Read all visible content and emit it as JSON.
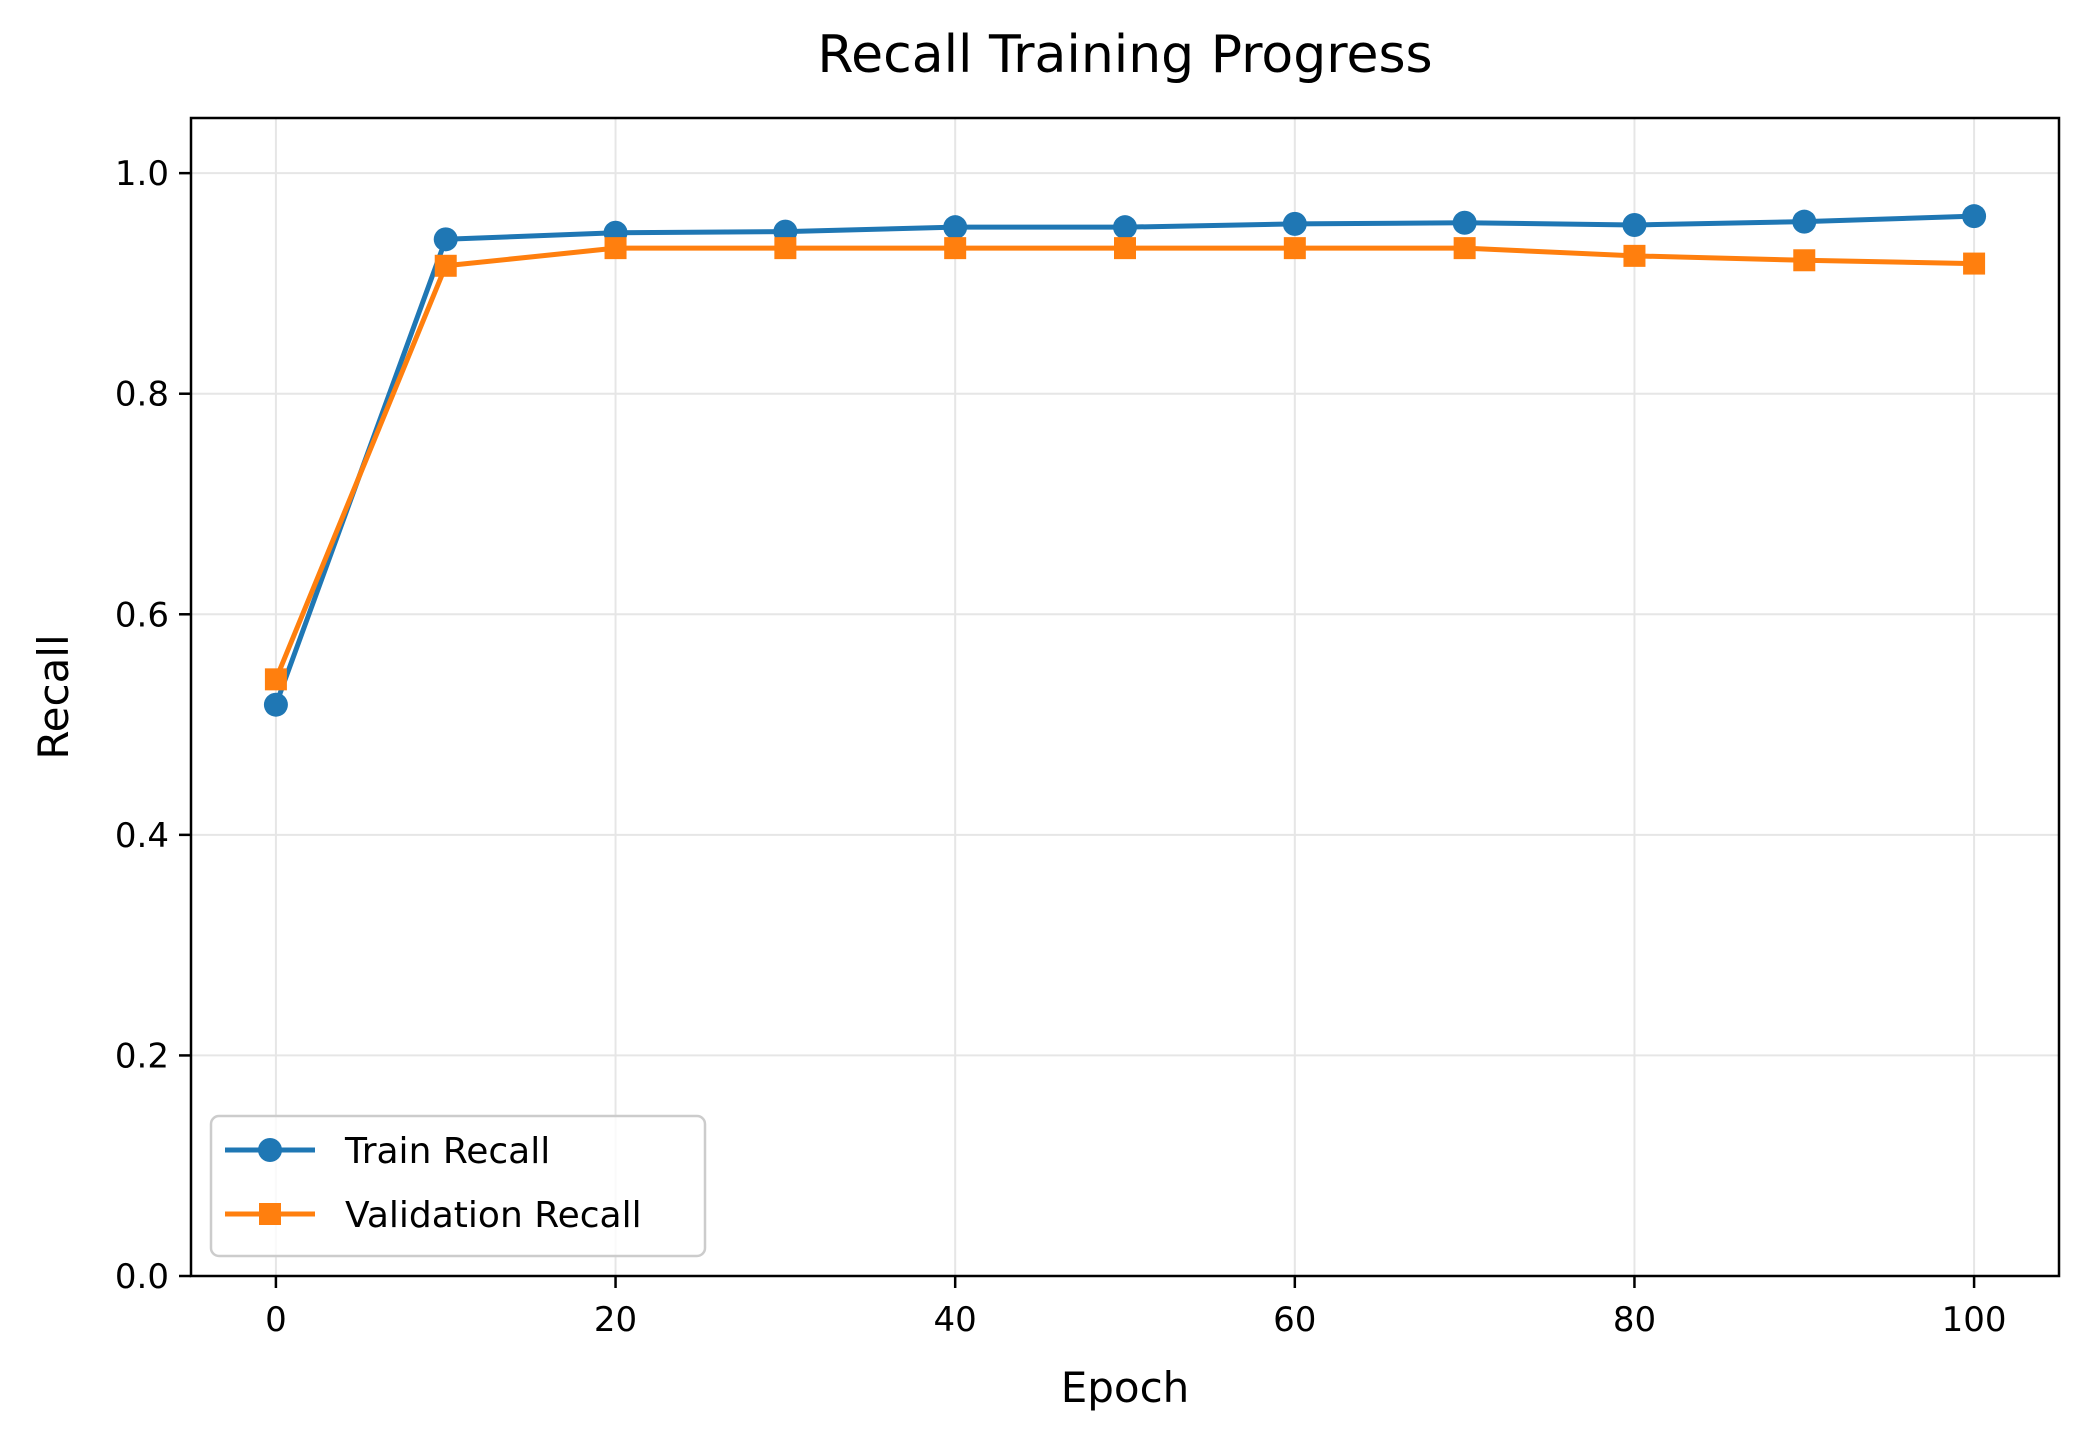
{
  "chart_data": {
    "type": "line",
    "title": "Recall Training Progress",
    "xlabel": "Epoch",
    "ylabel": "Recall",
    "xlim": [
      -5,
      105
    ],
    "ylim": [
      0.0,
      1.05
    ],
    "x_ticks": [
      0,
      20,
      40,
      60,
      80,
      100
    ],
    "x_tick_labels": [
      "0",
      "20",
      "40",
      "60",
      "80",
      "100"
    ],
    "y_ticks": [
      0.0,
      0.2,
      0.4,
      0.6,
      0.8,
      1.0
    ],
    "y_tick_labels": [
      "0.0",
      "0.2",
      "0.4",
      "0.6",
      "0.8",
      "1.0"
    ],
    "grid": true,
    "legend_position": "lower-left",
    "x": [
      0,
      10,
      20,
      30,
      40,
      50,
      60,
      70,
      80,
      90,
      100
    ],
    "series": [
      {
        "name": "Train Recall",
        "color": "#1f77b4",
        "marker": "circle",
        "values": [
          0.518,
          0.94,
          0.946,
          0.947,
          0.951,
          0.951,
          0.954,
          0.955,
          0.953,
          0.956,
          0.961
        ]
      },
      {
        "name": "Validation Recall",
        "color": "#ff7f0e",
        "marker": "square",
        "values": [
          0.541,
          0.916,
          0.932,
          0.932,
          0.932,
          0.932,
          0.932,
          0.932,
          0.925,
          0.921,
          0.918
        ]
      }
    ]
  }
}
